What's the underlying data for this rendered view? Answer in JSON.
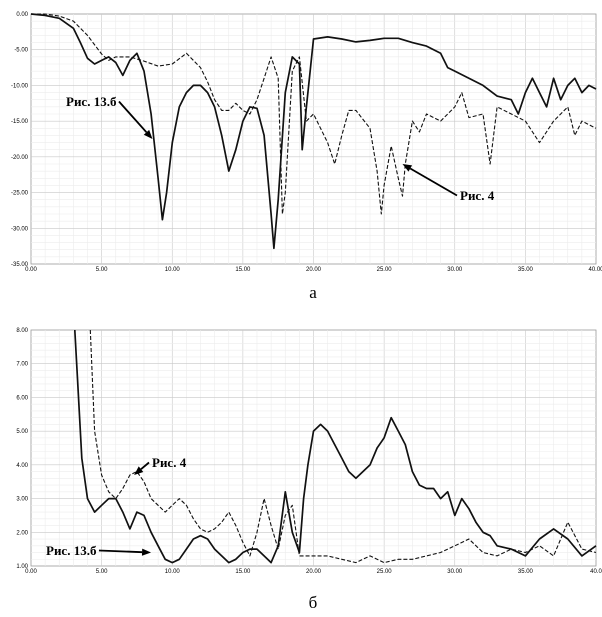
{
  "chart_data": [
    {
      "type": "line",
      "panel_label": "а",
      "xlim": [
        0,
        40
      ],
      "ylim": [
        -35,
        0
      ],
      "x_ticks": [
        "0.00",
        "5.00",
        "10.00",
        "15.00",
        "20.00",
        "25.00",
        "30.00",
        "35.00",
        "40.00"
      ],
      "y_ticks": [
        "0.00",
        "-5.00",
        "-10.00",
        "-15.00",
        "-20.00",
        "-25.00",
        "-30.00",
        "-35.00"
      ],
      "grid": true,
      "annotations": [
        {
          "text": "Рис. 13.б",
          "series": 0,
          "x_point": 8.6,
          "y_point": -17.5
        },
        {
          "text": "Рис. 4",
          "series": 1,
          "x_point": 26.3,
          "y_point": -21
        }
      ],
      "series": [
        {
          "style": "solid",
          "x": [
            0,
            1,
            2,
            3,
            3.5,
            4,
            4.5,
            5,
            5.5,
            6,
            6.5,
            7,
            7.5,
            8,
            8.5,
            9,
            9.3,
            9.6,
            10,
            10.5,
            11,
            11.5,
            12,
            12.5,
            13,
            13.5,
            14,
            14.5,
            15,
            15.5,
            16,
            16.5,
            17,
            17.2,
            17.5,
            18,
            18.5,
            19,
            19.2,
            19.5,
            20,
            21,
            22,
            23,
            24,
            25,
            26,
            27,
            28,
            29,
            29.5,
            30,
            31,
            32,
            33,
            34,
            34.5,
            35,
            35.5,
            36,
            36.5,
            37,
            37.5,
            38,
            38.5,
            39,
            39.5,
            40
          ],
          "y": [
            0,
            -0.2,
            -0.6,
            -2,
            -4,
            -6.2,
            -7,
            -6.5,
            -6,
            -6.8,
            -8.6,
            -6.5,
            -5.5,
            -8,
            -14,
            -23,
            -28.8,
            -25,
            -18,
            -13,
            -11,
            -10,
            -10,
            -11,
            -13,
            -17,
            -22,
            -19,
            -15,
            -13,
            -13.2,
            -17,
            -28,
            -32.8,
            -26,
            -11,
            -6,
            -7,
            -19,
            -13,
            -3.5,
            -3.2,
            -3.5,
            -3.9,
            -3.7,
            -3.4,
            -3.4,
            -4,
            -4.5,
            -5.5,
            -7.5,
            -8,
            -9,
            -10,
            -11.5,
            -12,
            -14,
            -11,
            -9,
            -11,
            -13,
            -9,
            -12,
            -10,
            -9,
            -11,
            -10,
            -10.5
          ]
        },
        {
          "style": "dashed",
          "x": [
            0,
            1,
            2,
            3,
            4,
            5,
            5.5,
            6,
            7,
            8,
            9,
            10,
            11,
            12,
            12.5,
            13,
            13.5,
            14,
            14.5,
            15,
            15.5,
            16,
            16.5,
            17,
            17.5,
            17.8,
            18,
            18.5,
            19,
            19.5,
            20,
            21,
            21.5,
            22,
            22.5,
            23,
            24,
            24.5,
            24.8,
            25,
            25.5,
            26,
            26.3,
            26.5,
            27,
            27.5,
            28,
            29,
            30,
            30.5,
            31,
            32,
            32.5,
            33,
            34,
            35,
            36,
            37,
            38,
            38.5,
            39,
            40
          ],
          "y": [
            0,
            0,
            -0.3,
            -1,
            -3,
            -5.6,
            -6.5,
            -6,
            -6,
            -6.6,
            -7.3,
            -7,
            -5.5,
            -7.5,
            -9.5,
            -12,
            -13.5,
            -13.5,
            -12.5,
            -13.5,
            -14,
            -12,
            -9,
            -6,
            -9,
            -28,
            -25,
            -8,
            -6,
            -15,
            -14,
            -18,
            -21,
            -17,
            -13.5,
            -13.5,
            -16,
            -22,
            -28,
            -24,
            -18.5,
            -23,
            -25.5,
            -21,
            -15,
            -16.5,
            -14,
            -15,
            -13,
            -11,
            -14.5,
            -14,
            -21,
            -13,
            -14,
            -15,
            -18,
            -15,
            -13,
            -17,
            -15,
            -16
          ]
        }
      ]
    },
    {
      "type": "line",
      "panel_label": "б",
      "xlim": [
        0,
        40
      ],
      "ylim": [
        1,
        8
      ],
      "x_ticks": [
        "0.00",
        "5.00",
        "10.00",
        "15.00",
        "20.00",
        "25.00",
        "30.00",
        "35.00",
        "40.0"
      ],
      "y_ticks": [
        "8.00",
        "7.00",
        "6.00",
        "5.00",
        "4.00",
        "3.00",
        "2.00",
        "1.00"
      ],
      "grid": true,
      "annotations": [
        {
          "text": "Рис. 4",
          "series": 1,
          "x_point": 7.3,
          "y_point": 3.7
        },
        {
          "text": "Рис. 13.б",
          "series": 0,
          "x_point": 8.5,
          "y_point": 1.4
        }
      ],
      "series": [
        {
          "style": "solid",
          "x": [
            3.1,
            3.3,
            3.6,
            4,
            4.5,
            5,
            5.5,
            6,
            6.5,
            7,
            7.5,
            8,
            8.5,
            9,
            9.5,
            10,
            10.5,
            11,
            11.5,
            12,
            12.5,
            13,
            13.5,
            14,
            14.5,
            15,
            15.5,
            16,
            16.5,
            17,
            17.5,
            18,
            18.5,
            19,
            19.3,
            19.6,
            20,
            20.5,
            21,
            21.5,
            22,
            22.5,
            23,
            23.5,
            24,
            24.5,
            25,
            25.5,
            26,
            26.5,
            27,
            27.5,
            28,
            28.5,
            29,
            29.5,
            30,
            30.5,
            31,
            31.5,
            32,
            32.5,
            33,
            34,
            35,
            36,
            37,
            38,
            39,
            40
          ],
          "y": [
            8,
            6.5,
            4.2,
            3,
            2.6,
            2.8,
            3,
            3,
            2.6,
            2.1,
            2.6,
            2.5,
            2,
            1.6,
            1.2,
            1.1,
            1.2,
            1.5,
            1.8,
            1.9,
            1.8,
            1.5,
            1.3,
            1.1,
            1.2,
            1.4,
            1.5,
            1.5,
            1.3,
            1.1,
            1.6,
            3.2,
            2,
            1.4,
            3,
            4,
            5,
            5.2,
            5,
            4.6,
            4.2,
            3.8,
            3.6,
            3.8,
            4,
            4.5,
            4.8,
            5.4,
            5,
            4.6,
            3.8,
            3.4,
            3.3,
            3.3,
            3,
            3.2,
            2.5,
            3,
            2.7,
            2.3,
            2,
            1.9,
            1.6,
            1.5,
            1.3,
            1.8,
            2.1,
            1.8,
            1.3,
            1.6
          ]
        },
        {
          "style": "dashed",
          "x": [
            4.2,
            4.5,
            5,
            5.5,
            6,
            6.5,
            7,
            7.5,
            8,
            8.5,
            9,
            9.5,
            10,
            10.5,
            11,
            11.5,
            12,
            12.5,
            13,
            13.5,
            14,
            14.5,
            15,
            15.5,
            16,
            16.5,
            17,
            17.5,
            18,
            18.5,
            19,
            20,
            21,
            22,
            23,
            24,
            25,
            26,
            27,
            28,
            29,
            30,
            31,
            32,
            33,
            34,
            35,
            36,
            37,
            38,
            39,
            40
          ],
          "y": [
            8,
            5,
            3.7,
            3.2,
            3,
            3.3,
            3.7,
            3.8,
            3.5,
            3,
            2.8,
            2.6,
            2.8,
            3,
            2.8,
            2.4,
            2.1,
            2,
            2.1,
            2.3,
            2.6,
            2.2,
            1.7,
            1.3,
            2,
            3,
            2.2,
            1.5,
            2.5,
            2.8,
            1.3,
            1.3,
            1.3,
            1.2,
            1.1,
            1.3,
            1.1,
            1.2,
            1.2,
            1.3,
            1.4,
            1.6,
            1.8,
            1.4,
            1.3,
            1.5,
            1.4,
            1.6,
            1.3,
            2.3,
            1.5,
            1.4
          ]
        }
      ]
    }
  ]
}
